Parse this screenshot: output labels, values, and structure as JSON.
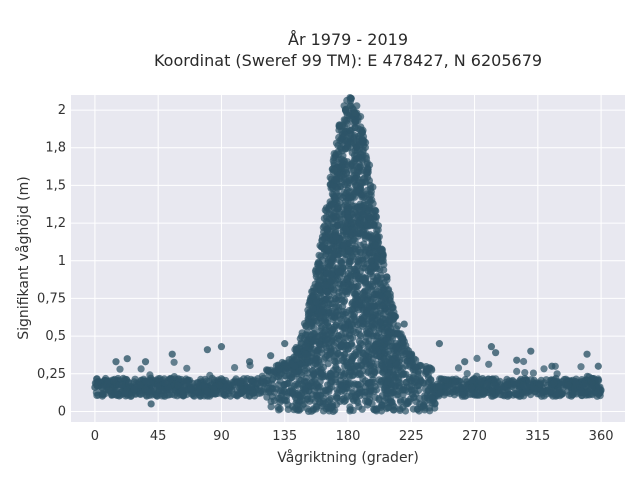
{
  "chart_data": {
    "type": "scatter",
    "title": "År 1979 - 2019",
    "subtitle": "Koordinat (Sweref 99 TM): E 478427, N 6205679",
    "xlabel": "Vågriktning (grader)",
    "ylabel": "Signifikant våghöjd (m)",
    "xlim": [
      -17,
      377
    ],
    "ylim": [
      -0.07,
      2.1
    ],
    "x_ticks": [
      0,
      45,
      90,
      135,
      180,
      225,
      270,
      315,
      360
    ],
    "x_tick_labels": [
      "0",
      "45",
      "90",
      "135",
      "180",
      "225",
      "270",
      "315",
      "360"
    ],
    "y_ticks": [
      0,
      0.25,
      0.5,
      0.75,
      1,
      1.25,
      1.5,
      1.75,
      2
    ],
    "y_tick_labels": [
      "0",
      "0,25",
      "0,5",
      "0,75",
      "1",
      "1,2",
      "1,5",
      "1,8",
      "2"
    ],
    "grid": true,
    "background_color": "#e8e8f0",
    "marker_color": "#2e5568",
    "peak": {
      "x": 182,
      "y": 2.03
    },
    "sample_points": [
      {
        "x": 0,
        "y": 0.16
      },
      {
        "x": 10,
        "y": 0.14
      },
      {
        "x": 15,
        "y": 0.33
      },
      {
        "x": 23,
        "y": 0.35
      },
      {
        "x": 36,
        "y": 0.33
      },
      {
        "x": 40,
        "y": 0.05
      },
      {
        "x": 55,
        "y": 0.38
      },
      {
        "x": 80,
        "y": 0.41
      },
      {
        "x": 90,
        "y": 0.43
      },
      {
        "x": 110,
        "y": 0.33
      },
      {
        "x": 125,
        "y": 0.37
      },
      {
        "x": 135,
        "y": 0.45
      },
      {
        "x": 150,
        "y": 0.57
      },
      {
        "x": 160,
        "y": 0.9
      },
      {
        "x": 170,
        "y": 1.6
      },
      {
        "x": 176,
        "y": 1.9
      },
      {
        "x": 182,
        "y": 2.03
      },
      {
        "x": 185,
        "y": 1.98
      },
      {
        "x": 190,
        "y": 1.85
      },
      {
        "x": 196,
        "y": 1.5
      },
      {
        "x": 205,
        "y": 1.0
      },
      {
        "x": 210,
        "y": 0.78
      },
      {
        "x": 220,
        "y": 0.58
      },
      {
        "x": 245,
        "y": 0.45
      },
      {
        "x": 263,
        "y": 0.33
      },
      {
        "x": 282,
        "y": 0.43
      },
      {
        "x": 285,
        "y": 0.39
      },
      {
        "x": 300,
        "y": 0.34
      },
      {
        "x": 310,
        "y": 0.4
      },
      {
        "x": 325,
        "y": 0.3
      },
      {
        "x": 350,
        "y": 0.38
      },
      {
        "x": 358,
        "y": 0.3
      }
    ]
  }
}
